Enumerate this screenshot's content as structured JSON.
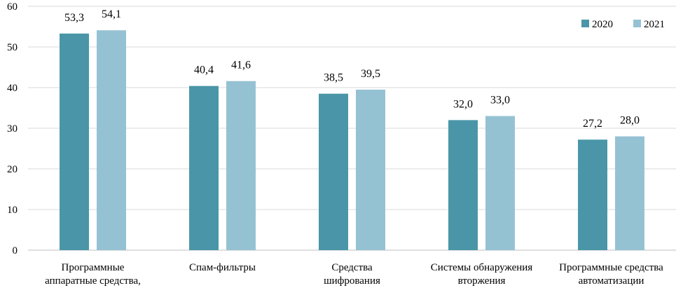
{
  "chart_data": {
    "type": "bar",
    "title": "",
    "xlabel": "",
    "ylabel": "",
    "ylim": [
      0,
      60
    ],
    "yticks": [
      0,
      10,
      20,
      30,
      40,
      50,
      60
    ],
    "grid": true,
    "legend_position": "top-right",
    "categories": [
      [
        "Программные",
        "аппаратные средства,"
      ],
      [
        "Спам-фильтры"
      ],
      [
        "Средства",
        "шифрования"
      ],
      [
        "Системы обнаружения",
        "вторжения"
      ],
      [
        "Программные средства",
        "автоматизации"
      ]
    ],
    "series": [
      {
        "name": "2020",
        "color": "#4a96a8",
        "values": [
          53.3,
          40.4,
          38.5,
          32.0,
          27.2
        ],
        "labels": [
          "53,3",
          "40,4",
          "38,5",
          "32,0",
          "27,2"
        ]
      },
      {
        "name": "2021",
        "color": "#95c2d3",
        "values": [
          54.1,
          41.6,
          39.5,
          33.0,
          28.0
        ],
        "labels": [
          "54,1",
          "41,6",
          "39,5",
          "33,0",
          "28,0"
        ]
      }
    ]
  }
}
